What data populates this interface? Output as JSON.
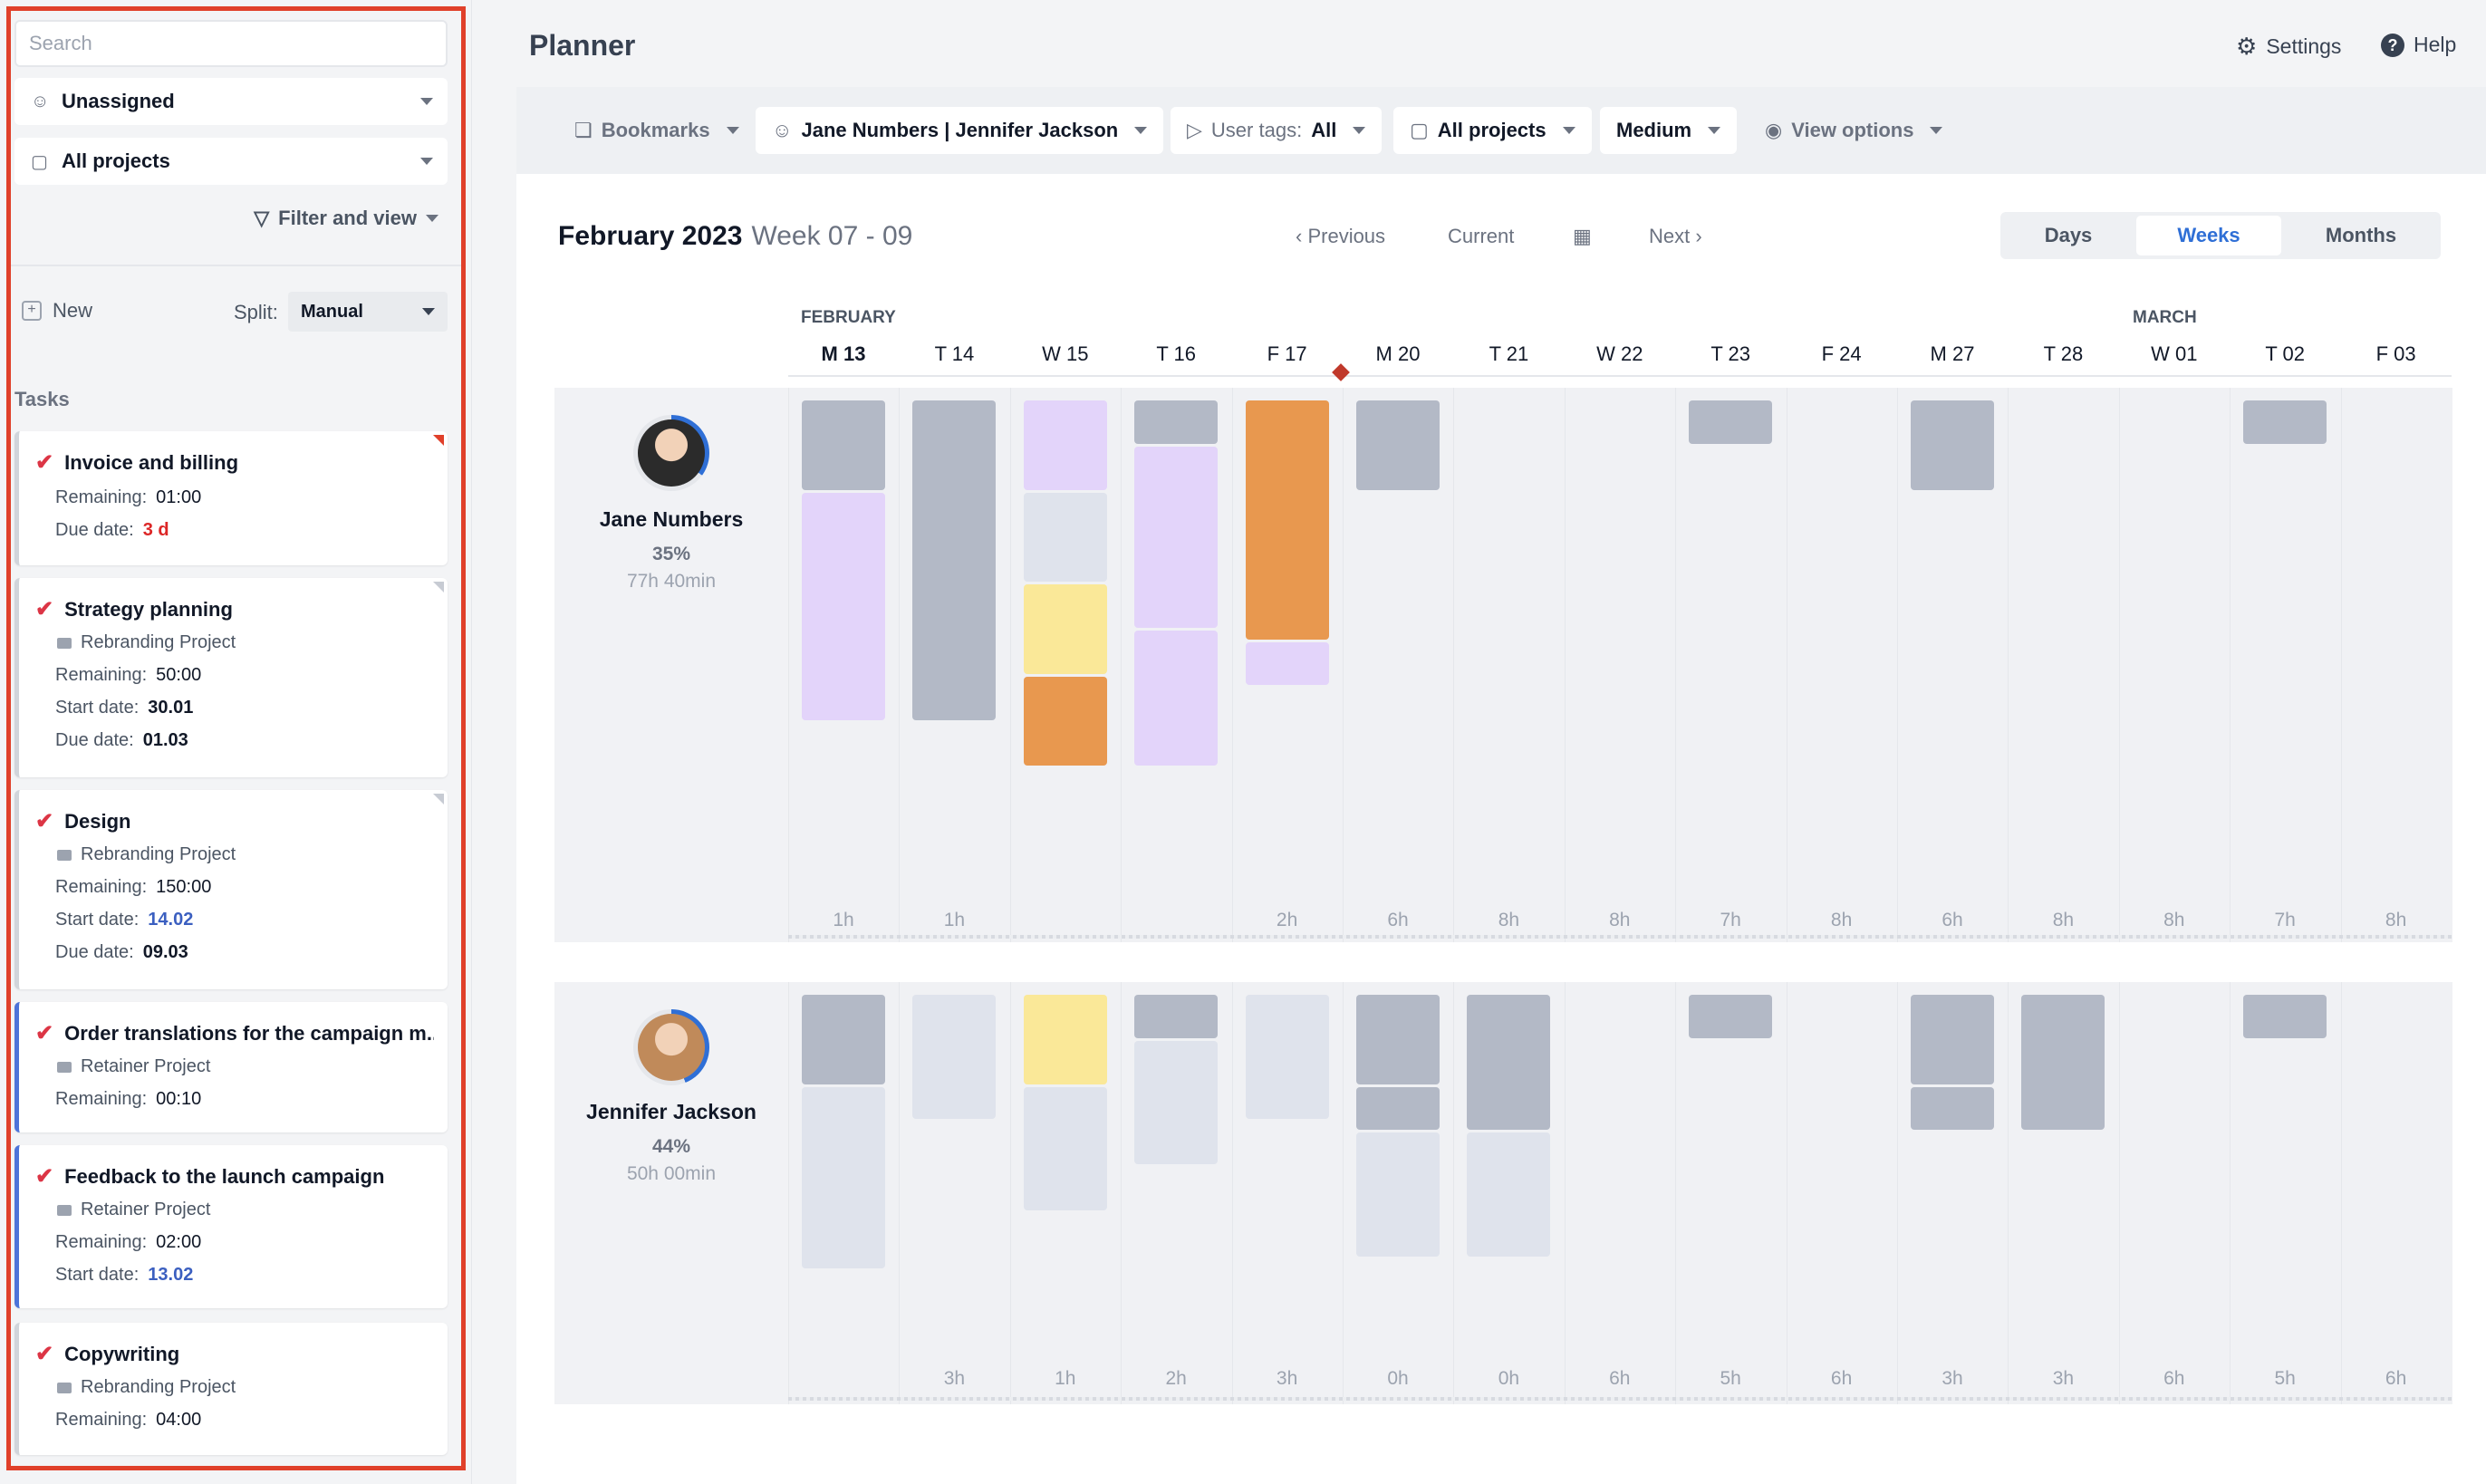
{
  "sidebar": {
    "search_placeholder": "Search",
    "assignee_select": "Unassigned",
    "project_select": "All projects",
    "filter_label": "Filter and view",
    "new_label": "New",
    "split_label": "Split:",
    "split_value": "Manual",
    "tasks_heading": "Tasks",
    "tasks": [
      {
        "title": "Invoice and billing",
        "remaining_label": "Remaining:",
        "remaining": "01:00",
        "due_label": "Due date:",
        "due": "3 d"
      },
      {
        "title": "Strategy planning",
        "project": "Rebranding Project",
        "remaining_label": "Remaining:",
        "remaining": "50:00",
        "start_label": "Start date:",
        "start": "30.01",
        "due_label": "Due date:",
        "due": "01.03"
      },
      {
        "title": "Design",
        "project": "Rebranding Project",
        "remaining_label": "Remaining:",
        "remaining": "150:00",
        "start_label": "Start date:",
        "start": "14.02",
        "due_label": "Due date:",
        "due": "09.03"
      },
      {
        "title": "Order translations for the campaign m...",
        "project": "Retainer Project",
        "remaining_label": "Remaining:",
        "remaining": "00:10"
      },
      {
        "title": "Feedback to the launch campaign",
        "project": "Retainer Project",
        "remaining_label": "Remaining:",
        "remaining": "02:00",
        "start_label": "Start date:",
        "start": "13.02"
      },
      {
        "title": "Copywriting",
        "project": "Rebranding Project",
        "remaining_label": "Remaining:",
        "remaining": "04:00"
      }
    ]
  },
  "header": {
    "title": "Planner",
    "settings_label": "Settings",
    "help_label": "Help"
  },
  "toolbar": {
    "bookmarks": "Bookmarks",
    "users": "Jane Numbers | Jennifer Jackson",
    "user_tags_label": "User tags:",
    "user_tags_value": "All",
    "projects": "All projects",
    "density": "Medium",
    "view_options": "View options"
  },
  "calendar": {
    "title_month": "February 2023",
    "title_weeks": "Week 07 - 09",
    "prev_label": "Previous",
    "current_label": "Current",
    "next_label": "Next",
    "views": [
      "Days",
      "Weeks",
      "Months"
    ],
    "active_view": "Weeks",
    "months": [
      "FEBRUARY",
      "MARCH"
    ],
    "days": [
      "M 13",
      "T 14",
      "W 15",
      "T 16",
      "F 17",
      "M 20",
      "T 21",
      "W 22",
      "T 23",
      "F 24",
      "M 27",
      "T 28",
      "W 01",
      "T 02",
      "F 03"
    ],
    "today_index": 0
  },
  "colors": {
    "accent": "#2f6fd6",
    "sidebar_frame": "#e0402a",
    "bar_gray": "#b3b9c6",
    "bar_light": "#dfe3ec",
    "bar_purple": "#e3d4fa",
    "bar_yellow": "#fae898",
    "bar_orange": "#e8984f"
  },
  "people": [
    {
      "name": "Jane Numbers",
      "utilization": "35%",
      "hours": "77h 40min",
      "utilization_fraction": 0.35,
      "day_labels": [
        "1h",
        "1h",
        "",
        "",
        "2h",
        "6h",
        "8h",
        "8h",
        "7h",
        "8h",
        "6h",
        "8h",
        "8h",
        "7h",
        "8h"
      ],
      "day_blocks": [
        [
          [
            "gray",
            8
          ],
          [
            "purple",
            20
          ]
        ],
        [
          [
            "gray",
            28
          ]
        ],
        [
          [
            "purple",
            8
          ],
          [
            "light",
            8
          ],
          [
            "yellow",
            8
          ],
          [
            "orange",
            8
          ]
        ],
        [
          [
            "gray",
            4
          ],
          [
            "purple",
            16
          ],
          [
            "purple",
            12
          ]
        ],
        [
          [
            "orange",
            21
          ],
          [
            "purple",
            4
          ]
        ],
        [
          [
            "gray",
            8
          ]
        ],
        [],
        [],
        [
          [
            "gray",
            4
          ]
        ],
        [],
        [
          [
            "gray",
            8
          ]
        ],
        [],
        [],
        [
          [
            "gray",
            4
          ]
        ],
        []
      ]
    },
    {
      "name": "Jennifer Jackson",
      "utilization": "44%",
      "hours": "50h 00min",
      "utilization_fraction": 0.44,
      "day_labels": [
        "",
        "3h",
        "1h",
        "2h",
        "3h",
        "0h",
        "0h",
        "6h",
        "5h",
        "6h",
        "3h",
        "3h",
        "6h",
        "5h",
        "6h"
      ],
      "day_blocks": [
        [
          [
            "gray",
            8
          ],
          [
            "light",
            16
          ]
        ],
        [
          [
            "light",
            11
          ]
        ],
        [
          [
            "yellow",
            8
          ],
          [
            "light",
            11
          ]
        ],
        [
          [
            "gray",
            4
          ],
          [
            "light",
            11
          ]
        ],
        [
          [
            "light",
            11
          ]
        ],
        [
          [
            "gray",
            8
          ],
          [
            "gray",
            4
          ],
          [
            "light",
            11
          ]
        ],
        [
          [
            "gray",
            12
          ],
          [
            "light",
            11
          ]
        ],
        [],
        [
          [
            "gray",
            4
          ]
        ],
        [],
        [
          [
            "gray",
            8
          ],
          [
            "gray",
            4
          ]
        ],
        [
          [
            "gray",
            12
          ]
        ],
        [],
        [
          [
            "gray",
            4
          ]
        ],
        []
      ]
    }
  ]
}
